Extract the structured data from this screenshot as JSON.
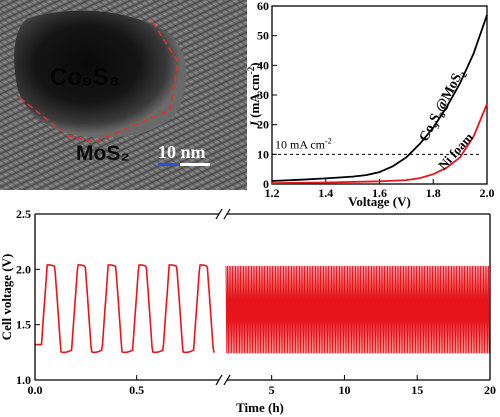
{
  "tem": {
    "core_label": "Co₉S₈",
    "shell_label": "MoS₂",
    "scale_label": "10 nm"
  },
  "chart_data": [
    {
      "type": "line",
      "xlabel": "Voltage (V)",
      "ylabel_pre": "J",
      "ylabel_unit": " (mA cm",
      "ylabel_sup": "-2",
      "ylabel_post": ")",
      "xlim": [
        1.2,
        2.0
      ],
      "ylim": [
        0,
        60
      ],
      "xticks": [
        1.2,
        1.4,
        1.6,
        1.8,
        2.0
      ],
      "xtick_labels": [
        "1.2",
        "1.4",
        "1.6",
        "1.8",
        "2.0"
      ],
      "yticks": [
        0,
        10,
        20,
        30,
        40,
        50,
        60
      ],
      "ytick_labels": [
        "0",
        "10",
        "20",
        "30",
        "40",
        "50",
        "60"
      ],
      "reference_line": {
        "y": 10,
        "label": "10 mA cm",
        "label_sup": "-2"
      },
      "series": [
        {
          "name": "Co9S8@MoS2",
          "name_parts": [
            "Co",
            "9",
            "S",
            "8",
            "@MoS",
            "2"
          ],
          "color": "#000000",
          "points": [
            [
              1.2,
              1.0
            ],
            [
              1.3,
              1.4
            ],
            [
              1.4,
              1.9
            ],
            [
              1.5,
              2.5
            ],
            [
              1.55,
              3.0
            ],
            [
              1.6,
              4.0
            ],
            [
              1.65,
              6.0
            ],
            [
              1.7,
              9.0
            ],
            [
              1.75,
              13.5
            ],
            [
              1.8,
              19.0
            ],
            [
              1.85,
              26.0
            ],
            [
              1.9,
              34.0
            ],
            [
              1.95,
              44.0
            ],
            [
              2.0,
              57.0
            ]
          ]
        },
        {
          "name": "Ni foam",
          "color": "#e8141b",
          "points": [
            [
              1.2,
              0.3
            ],
            [
              1.4,
              0.5
            ],
            [
              1.6,
              0.9
            ],
            [
              1.7,
              1.3
            ],
            [
              1.75,
              2.0
            ],
            [
              1.8,
              3.3
            ],
            [
              1.85,
              5.5
            ],
            [
              1.9,
              9.0
            ],
            [
              1.95,
              16.0
            ],
            [
              2.0,
              27.0
            ]
          ]
        }
      ]
    },
    {
      "type": "line",
      "xlabel": "Time (h)",
      "ylabel": "Cell voltage (V)",
      "ylim": [
        1.0,
        2.5
      ],
      "yticks": [
        1.0,
        1.5,
        2.0,
        2.5
      ],
      "ytick_labels": [
        "1.0",
        "1.5",
        "2.0",
        "2.5"
      ],
      "segments": [
        {
          "xlim": [
            0.0,
            0.9
          ],
          "xticks": [
            0.0,
            0.5
          ],
          "xtick_labels": [
            "0.0",
            "0.5"
          ]
        },
        {
          "xlim": [
            2.0,
            20.0
          ],
          "xticks": [
            5,
            10,
            15,
            20
          ],
          "xtick_labels": [
            "5",
            "10",
            "15",
            "20"
          ]
        }
      ],
      "series": [
        {
          "name": "",
          "color": "#e8141b",
          "low": 1.27,
          "high": 2.02,
          "cycle_hours": 0.15,
          "start_hours": 0.03,
          "segment2_band": [
            1.24,
            2.03
          ]
        }
      ]
    }
  ]
}
